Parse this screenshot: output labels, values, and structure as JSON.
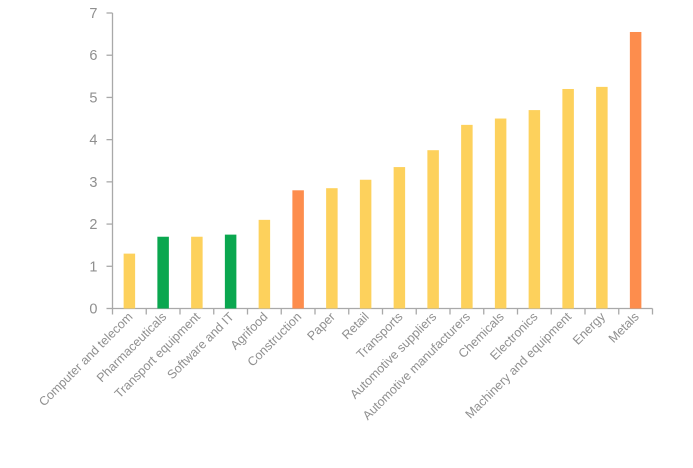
{
  "chart_data": {
    "type": "bar",
    "title": "",
    "xlabel": "",
    "ylabel": "",
    "categories": [
      "Computer and telecom",
      "Pharmaceuticals",
      "Transport equipment",
      "Software and IT",
      "Agrifood",
      "Construction",
      "Paper",
      "Retail",
      "Transports",
      "Automotive suppliers",
      "Automotive manufacturers",
      "Chemicals",
      "Electronics",
      "Machinery and equipment",
      "Energy",
      "Metals"
    ],
    "values": [
      1.3,
      1.7,
      1.7,
      1.75,
      2.1,
      2.8,
      2.85,
      3.05,
      3.35,
      3.75,
      4.35,
      4.5,
      4.7,
      5.2,
      5.25,
      6.55
    ],
    "bar_colors": [
      "yellow",
      "green",
      "yellow",
      "green",
      "yellow",
      "orange",
      "yellow",
      "yellow",
      "yellow",
      "yellow",
      "yellow",
      "yellow",
      "yellow",
      "yellow",
      "yellow",
      "orange"
    ],
    "palette": {
      "yellow": "#FDD15C",
      "green": "#0AA74F",
      "orange": "#FD8D4D"
    },
    "ylim": [
      0,
      7
    ],
    "yticks": [
      "0",
      "1",
      "2",
      "3",
      "4",
      "5",
      "6",
      "7"
    ],
    "grid": false,
    "legend": null,
    "x_label_rotation_deg": 45,
    "axis_color": "#A9A9A9",
    "tick_label_color": "#8F8F8F"
  }
}
